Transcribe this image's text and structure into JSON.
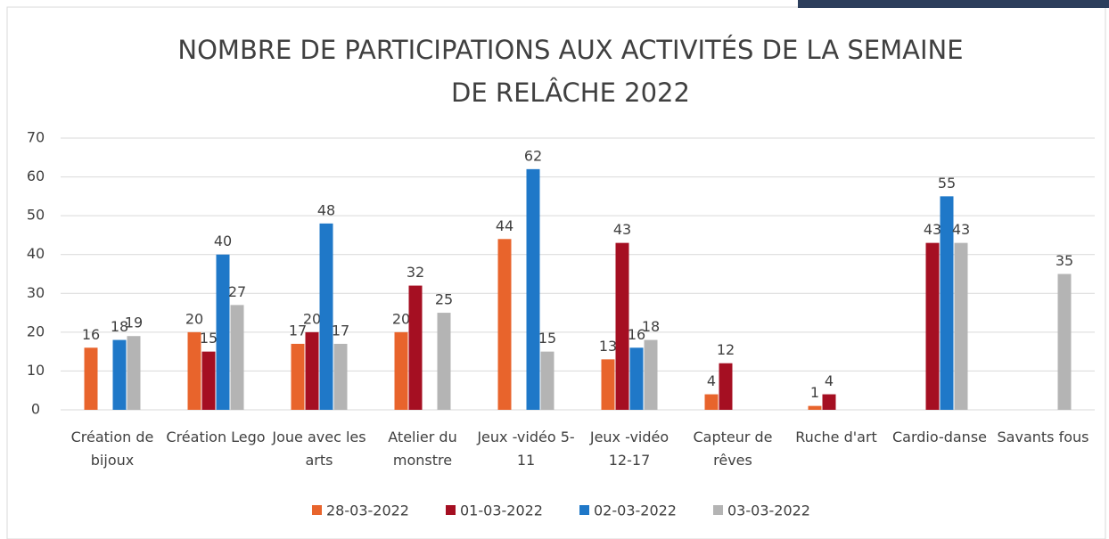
{
  "chart_data": {
    "type": "bar",
    "title": "NOMBRE DE PARTICIPATIONS AUX ACTIVITÉS DE LA SEMAINE DE RELÂCHE 2022",
    "categories": [
      "Création de bijoux",
      "Création Lego",
      "Joue avec les arts",
      "Atelier du monstre",
      "Jeux -vidéo 5-11",
      "Jeux -vidéo 12-17",
      "Capteur de rêves",
      "Ruche d'art",
      "Cardio-danse",
      "Savants fous"
    ],
    "series": [
      {
        "name": "28-03-2022",
        "color": "#e8642c",
        "values": [
          16,
          20,
          17,
          20,
          44,
          13,
          4,
          1,
          null,
          null
        ]
      },
      {
        "name": "01-03-2022",
        "color": "#a50f22",
        "values": [
          null,
          15,
          20,
          32,
          null,
          43,
          12,
          4,
          43,
          null
        ]
      },
      {
        "name": "02-03-2022",
        "color": "#1f78c8",
        "values": [
          18,
          40,
          48,
          null,
          62,
          16,
          null,
          null,
          55,
          null
        ]
      },
      {
        "name": "03-03-2022",
        "color": "#b4b4b4",
        "values": [
          19,
          27,
          17,
          25,
          15,
          18,
          null,
          null,
          43,
          35
        ]
      }
    ],
    "ylim": [
      0,
      70
    ],
    "yticks": [
      0,
      10,
      20,
      30,
      40,
      50,
      60,
      70
    ],
    "grid": true,
    "legend": "bottom"
  }
}
